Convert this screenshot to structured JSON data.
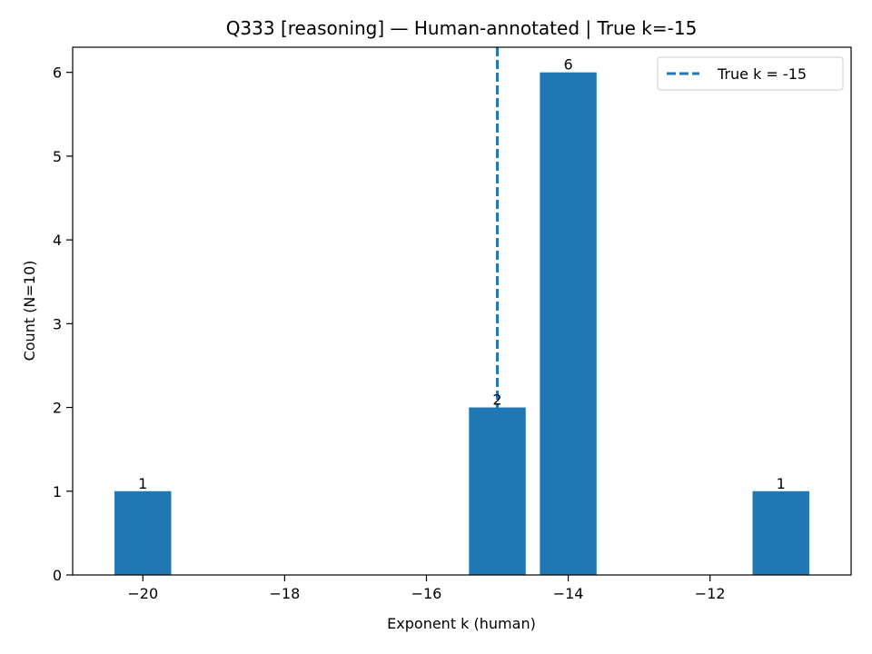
{
  "chart_data": {
    "type": "bar",
    "title": "Q333 [reasoning] — Human-annotated | True k=-15",
    "xlabel": "Exponent k (human)",
    "ylabel": "Count (N=10)",
    "x": [
      -20,
      -15,
      -14,
      -11
    ],
    "values": [
      1,
      2,
      6,
      1
    ],
    "data_labels": [
      "1",
      "2",
      "6",
      "1"
    ],
    "bar_width": 0.8,
    "xlim": [
      -20.99,
      -10.01
    ],
    "ylim": [
      0,
      6.3
    ],
    "xticks": [
      -20,
      -18,
      -16,
      -14,
      -12
    ],
    "xtick_labels": [
      "−20",
      "−18",
      "−16",
      "−14",
      "−12"
    ],
    "yticks": [
      0,
      1,
      2,
      3,
      4,
      5,
      6
    ],
    "ytick_labels": [
      "0",
      "1",
      "2",
      "3",
      "4",
      "5",
      "6"
    ],
    "reference_line": {
      "x": -15,
      "label": "True k = -15",
      "style": "dashed"
    },
    "legend_position": "top-right",
    "grid": false,
    "bar_color": "#1f77b4"
  }
}
